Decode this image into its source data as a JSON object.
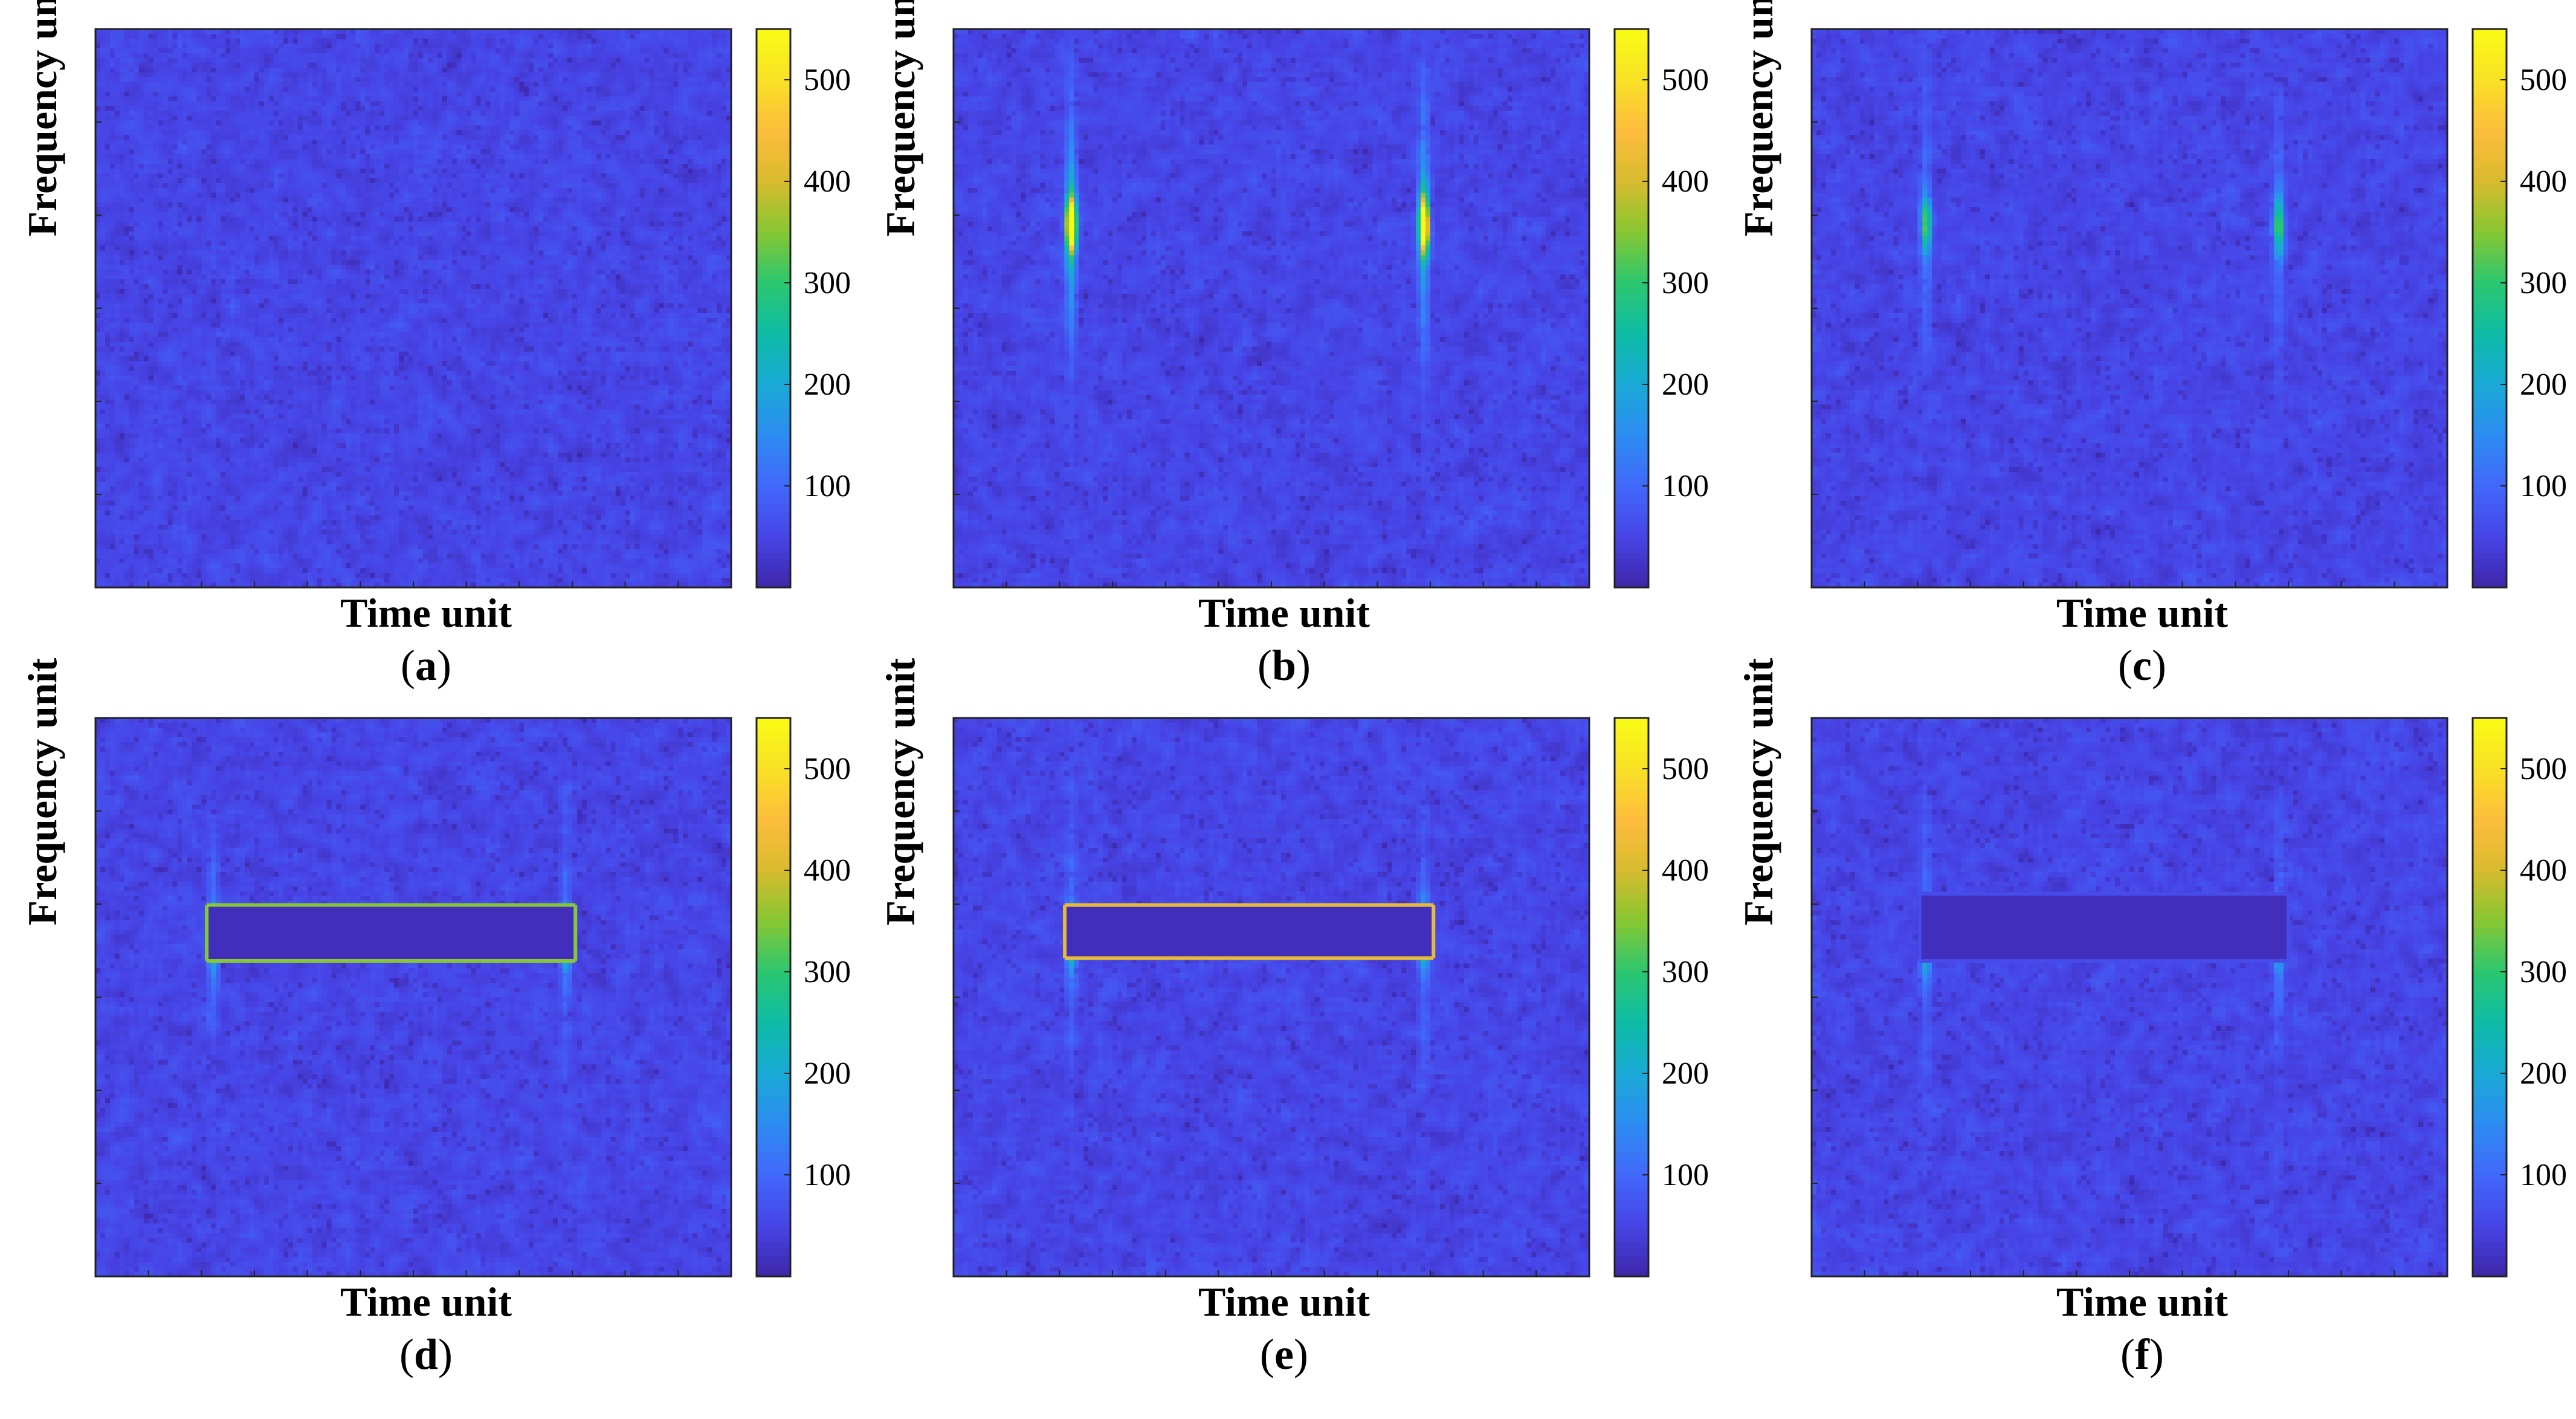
{
  "colormap": [
    "#3e26a8",
    "#4744e6",
    "#4268fb",
    "#2d8cf2",
    "#1aa9d6",
    "#0dbca6",
    "#2bc770",
    "#86c733",
    "#d8bb2e",
    "#fdbd3c",
    "#f9e126",
    "#f9fb15"
  ],
  "chart_data": [
    {
      "type": "heatmap",
      "panel": "a",
      "caption_letter": "a",
      "xlabel": "Time unit",
      "ylabel": "Frequency unit",
      "colorbar": {
        "range": [
          0,
          550
        ],
        "ticks": [
          100,
          200,
          300,
          400,
          500
        ],
        "tick_labels": [
          "100",
          "200",
          "300",
          "400",
          "500"
        ]
      },
      "noise_level": 40,
      "targets": [],
      "notch": null
    },
    {
      "type": "heatmap",
      "panel": "b",
      "caption_letter": "b",
      "xlabel": "Time unit",
      "ylabel": "Frequency unit",
      "colorbar": {
        "range": [
          0,
          550
        ],
        "ticks": [
          100,
          200,
          300,
          400,
          500
        ],
        "tick_labels": [
          "100",
          "200",
          "300",
          "400",
          "500"
        ]
      },
      "noise_level": 40,
      "targets": [
        {
          "time": 0.185,
          "freq": 0.65,
          "peak": 530
        },
        {
          "time": 0.74,
          "freq": 0.65,
          "peak": 530
        }
      ],
      "notch": null
    },
    {
      "type": "heatmap",
      "panel": "c",
      "caption_letter": "c",
      "xlabel": "Time unit",
      "ylabel": "Frequency unit",
      "colorbar": {
        "range": [
          0,
          550
        ],
        "ticks": [
          100,
          200,
          300,
          400,
          500
        ],
        "tick_labels": [
          "100",
          "200",
          "300",
          "400",
          "500"
        ]
      },
      "noise_level": 40,
      "targets": [
        {
          "time": 0.18,
          "freq": 0.65,
          "peak": 230
        },
        {
          "time": 0.735,
          "freq": 0.65,
          "peak": 230
        }
      ],
      "notch": null
    },
    {
      "type": "heatmap",
      "panel": "d",
      "caption_letter": "d",
      "xlabel": "Time unit",
      "ylabel": "Frequency unit",
      "colorbar": {
        "range": [
          0,
          550
        ],
        "ticks": [
          100,
          200,
          300,
          400,
          500
        ],
        "tick_labels": [
          "100",
          "200",
          "300",
          "400",
          "500"
        ]
      },
      "noise_level": 40,
      "targets": [
        {
          "time": 0.185,
          "freq": 0.6,
          "peak": 200
        },
        {
          "time": 0.74,
          "freq": 0.6,
          "peak": 200
        }
      ],
      "notch": {
        "t_start": 0.175,
        "t_end": 0.755,
        "f_low": 0.565,
        "f_high": 0.665,
        "edge_value": 350
      }
    },
    {
      "type": "heatmap",
      "panel": "e",
      "caption_letter": "e",
      "xlabel": "Time unit",
      "ylabel": "Frequency unit",
      "colorbar": {
        "range": [
          0,
          550
        ],
        "ticks": [
          100,
          200,
          300,
          400,
          500
        ],
        "tick_labels": [
          "100",
          "200",
          "300",
          "400",
          "500"
        ]
      },
      "noise_level": 40,
      "targets": [
        {
          "time": 0.185,
          "freq": 0.6,
          "peak": 210
        },
        {
          "time": 0.74,
          "freq": 0.6,
          "peak": 210
        }
      ],
      "notch": {
        "t_start": 0.175,
        "t_end": 0.755,
        "f_low": 0.57,
        "f_high": 0.665,
        "edge_value": 420
      }
    },
    {
      "type": "heatmap",
      "panel": "f",
      "caption_letter": "f",
      "xlabel": "Time unit",
      "ylabel": "Frequency unit",
      "colorbar": {
        "range": [
          0,
          550
        ],
        "ticks": [
          100,
          200,
          300,
          400,
          500
        ],
        "tick_labels": [
          "100",
          "200",
          "300",
          "400",
          "500"
        ]
      },
      "noise_level": 40,
      "targets": [
        {
          "time": 0.18,
          "freq": 0.6,
          "peak": 200
        },
        {
          "time": 0.735,
          "freq": 0.6,
          "peak": 200
        }
      ],
      "notch": {
        "t_start": 0.17,
        "t_end": 0.75,
        "f_low": 0.565,
        "f_high": 0.685,
        "edge_value": 60
      }
    }
  ]
}
